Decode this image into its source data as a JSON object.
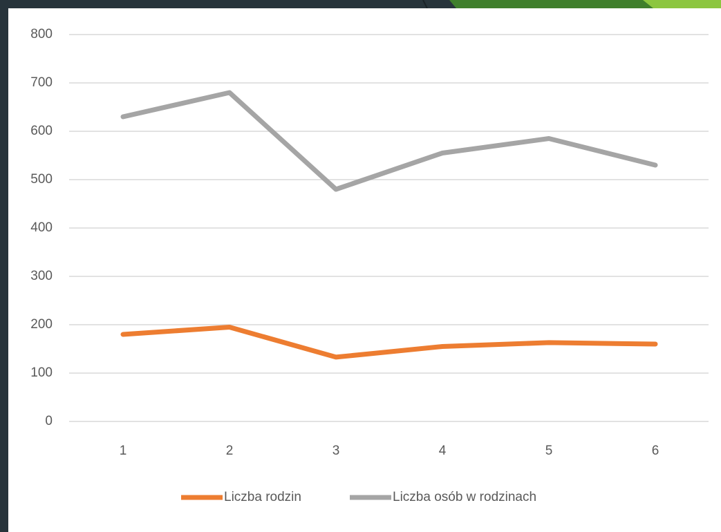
{
  "chart_data": {
    "type": "line",
    "categories": [
      1,
      2,
      3,
      4,
      5,
      6
    ],
    "series": [
      {
        "name": "Liczba rodzin",
        "color": "#ed7d31",
        "values": [
          180,
          195,
          133,
          155,
          163,
          160
        ]
      },
      {
        "name": "Liczba osób w rodzinach",
        "color": "#a5a5a5",
        "values": [
          630,
          680,
          480,
          555,
          585,
          530
        ]
      }
    ],
    "ylim": [
      0,
      800
    ],
    "yticks": [
      0,
      100,
      200,
      300,
      400,
      500,
      600,
      700,
      800
    ],
    "grid": true,
    "legend": "bottom"
  }
}
